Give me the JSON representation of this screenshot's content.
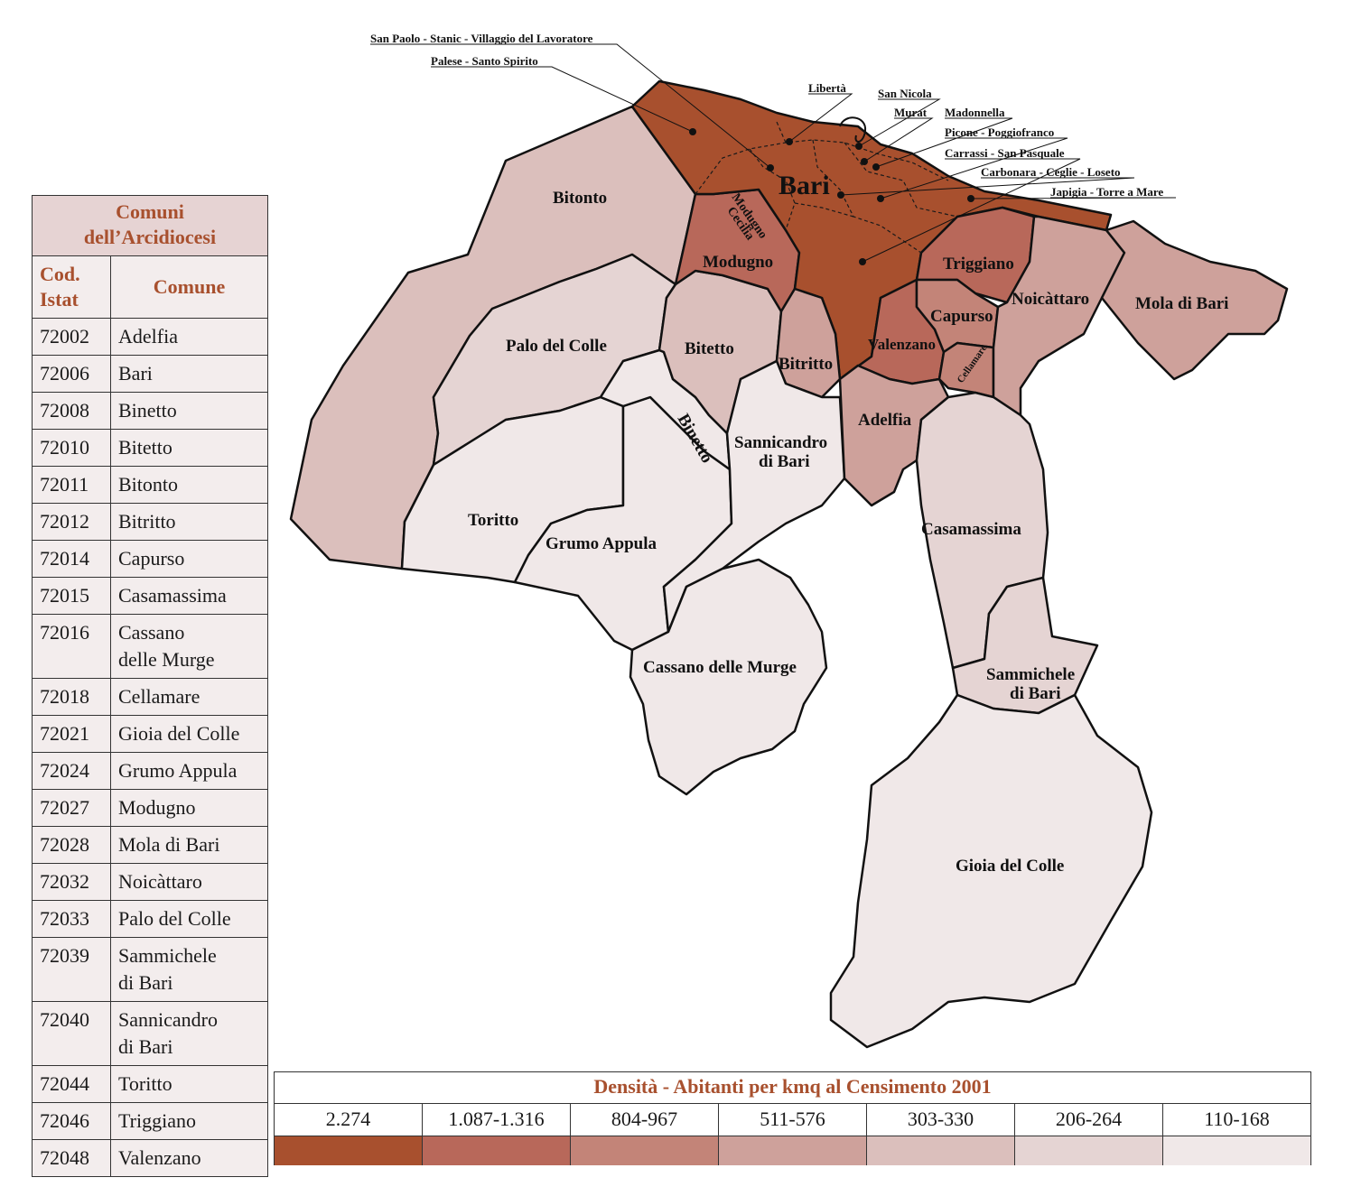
{
  "table": {
    "title_line1": "Comuni",
    "title_line2": "dell’Arcidiocesi",
    "header_code_line1": "Cod.",
    "header_code_line2": "Istat",
    "header_name": "Comune",
    "rows": [
      {
        "code": "72002",
        "name": "Adelfia",
        "name2": ""
      },
      {
        "code": "72006",
        "name": "Bari",
        "name2": ""
      },
      {
        "code": "72008",
        "name": "Binetto",
        "name2": ""
      },
      {
        "code": "72010",
        "name": "Bitetto",
        "name2": ""
      },
      {
        "code": "72011",
        "name": "Bitonto",
        "name2": ""
      },
      {
        "code": "72012",
        "name": "Bitritto",
        "name2": ""
      },
      {
        "code": "72014",
        "name": "Capurso",
        "name2": ""
      },
      {
        "code": "72015",
        "name": "Casamassima",
        "name2": ""
      },
      {
        "code": "72016",
        "name": "Cassano",
        "name2": "delle Murge"
      },
      {
        "code": "72018",
        "name": "Cellamare",
        "name2": ""
      },
      {
        "code": "72021",
        "name": "Gioia del Colle",
        "name2": ""
      },
      {
        "code": "72024",
        "name": "Grumo Appula",
        "name2": ""
      },
      {
        "code": "72027",
        "name": "Modugno",
        "name2": ""
      },
      {
        "code": "72028",
        "name": "Mola di Bari",
        "name2": ""
      },
      {
        "code": "72032",
        "name": "Noicàttaro",
        "name2": ""
      },
      {
        "code": "72033",
        "name": "Palo del Colle",
        "name2": ""
      },
      {
        "code": "72039",
        "name": "Sammichele",
        "name2": "di Bari"
      },
      {
        "code": "72040",
        "name": "Sannicandro",
        "name2": "di Bari"
      },
      {
        "code": "72044",
        "name": "Toritto",
        "name2": ""
      },
      {
        "code": "72046",
        "name": "Triggiano",
        "name2": ""
      },
      {
        "code": "72048",
        "name": "Valenzano",
        "name2": ""
      }
    ]
  },
  "legend": {
    "title": "Densità - Abitanti per kmq al Censimento 2001",
    "classes": [
      {
        "range": "2.274",
        "color": "#a8502e"
      },
      {
        "range": "1.087-1.316",
        "color": "#b8685a"
      },
      {
        "range": "804-967",
        "color": "#c38478"
      },
      {
        "range": "511-576",
        "color": "#cea19b"
      },
      {
        "range": "303-330",
        "color": "#dbbfbc"
      },
      {
        "range": "206-264",
        "color": "#e5d4d3"
      },
      {
        "range": "110-168",
        "color": "#f0e8e8"
      }
    ]
  },
  "map": {
    "bari_title": "Bari",
    "comuni": [
      {
        "name": "Bitonto",
        "density_class": "303-330",
        "color": "#dbbfbc"
      },
      {
        "name": "Palo del Colle",
        "density_class": "206-264",
        "color": "#e5d4d3"
      },
      {
        "name": "Modugno",
        "density_class": "1.087-1.316",
        "color": "#b8685a"
      },
      {
        "name": "Bitetto",
        "density_class": "303-330",
        "color": "#dbbfbc"
      },
      {
        "name": "Bitritto",
        "density_class": "511-576",
        "color": "#cea19b"
      },
      {
        "name": "Binetto",
        "density_class": "110-168",
        "color": "#f0e8e8"
      },
      {
        "name": "Valenzano",
        "density_class": "1.087-1.316",
        "color": "#b8685a"
      },
      {
        "name": "Triggiano",
        "density_class": "1.087-1.316",
        "color": "#b8685a"
      },
      {
        "name": "Capurso",
        "density_class": "804-967",
        "color": "#c38478"
      },
      {
        "name": "Cellamare",
        "density_class": "804-967",
        "color": "#c38478"
      },
      {
        "name": "Noicàttaro",
        "density_class": "511-576",
        "color": "#cea19b"
      },
      {
        "name": "Mola di Bari",
        "density_class": "511-576",
        "color": "#cea19b"
      },
      {
        "name": "Adelfia",
        "density_class": "511-576",
        "color": "#cea19b"
      },
      {
        "name": "Sannicandro di Bari",
        "density_class": "110-168",
        "color": "#f0e8e8"
      },
      {
        "name": "Toritto",
        "density_class": "110-168",
        "color": "#f0e8e8"
      },
      {
        "name": "Grumo Appula",
        "density_class": "110-168",
        "color": "#f0e8e8"
      },
      {
        "name": "Cassano delle Murge",
        "density_class": "110-168",
        "color": "#f0e8e8"
      },
      {
        "name": "Casamassima",
        "density_class": "206-264",
        "color": "#e5d4d3"
      },
      {
        "name": "Sammichele di Bari",
        "density_class": "206-264",
        "color": "#e5d4d3"
      },
      {
        "name": "Gioia del Colle",
        "density_class": "110-168",
        "color": "#f0e8e8"
      },
      {
        "name": "Bari",
        "density_class": "2.274",
        "color": "#a8502e"
      }
    ],
    "labels": {
      "bitonto": "Bitonto",
      "palo": "Palo del Colle",
      "modugno": "Modugno",
      "bitetto": "Bitetto",
      "bitritto": "Bitritto",
      "binetto": "Binetto",
      "valenzano": "Valenzano",
      "triggiano": "Triggiano",
      "capurso": "Capurso",
      "cellamare": "Cellamare",
      "noicattaro": "Noicàttaro",
      "mola": "Mola di Bari",
      "adelfia": "Adelfia",
      "sannicandro1": "Sannicandro",
      "sannicandro2": "di Bari",
      "toritto": "Toritto",
      "grumo": "Grumo Appula",
      "cassano": "Cassano delle Murge",
      "casamassima": "Casamassima",
      "sammichele1": "Sammichele",
      "sammichele2": "di Bari",
      "gioia": "Gioia del Colle",
      "modugno_cecilia1": "Modugno",
      "modugno_cecilia2": "Cecilia"
    },
    "quartieri": [
      "San Paolo - Stanic - Villaggio del Lavoratore",
      "Palese - Santo Spirito",
      "Libertà",
      "San Nicola",
      "Murat",
      "Madonnella",
      "Picone - Poggiofranco",
      "Carrassi - San Pasquale",
      "Carbonara - Ceglie - Loseto",
      "Japigia - Torre a Mare"
    ]
  }
}
